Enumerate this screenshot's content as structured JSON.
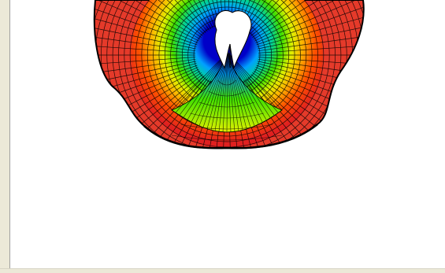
{
  "window": {
    "background_color": "#ece9d8",
    "canvas_color": "#ffffff"
  },
  "surface_plot": {
    "type": "3d-mesh-surface",
    "colormap": [
      "#0000c8",
      "#00a0ff",
      "#00d0a0",
      "#40e000",
      "#e0f000",
      "#ffb000",
      "#ff5000",
      "#e02020"
    ],
    "edge_color": "#000000",
    "visible_in_view": true
  }
}
